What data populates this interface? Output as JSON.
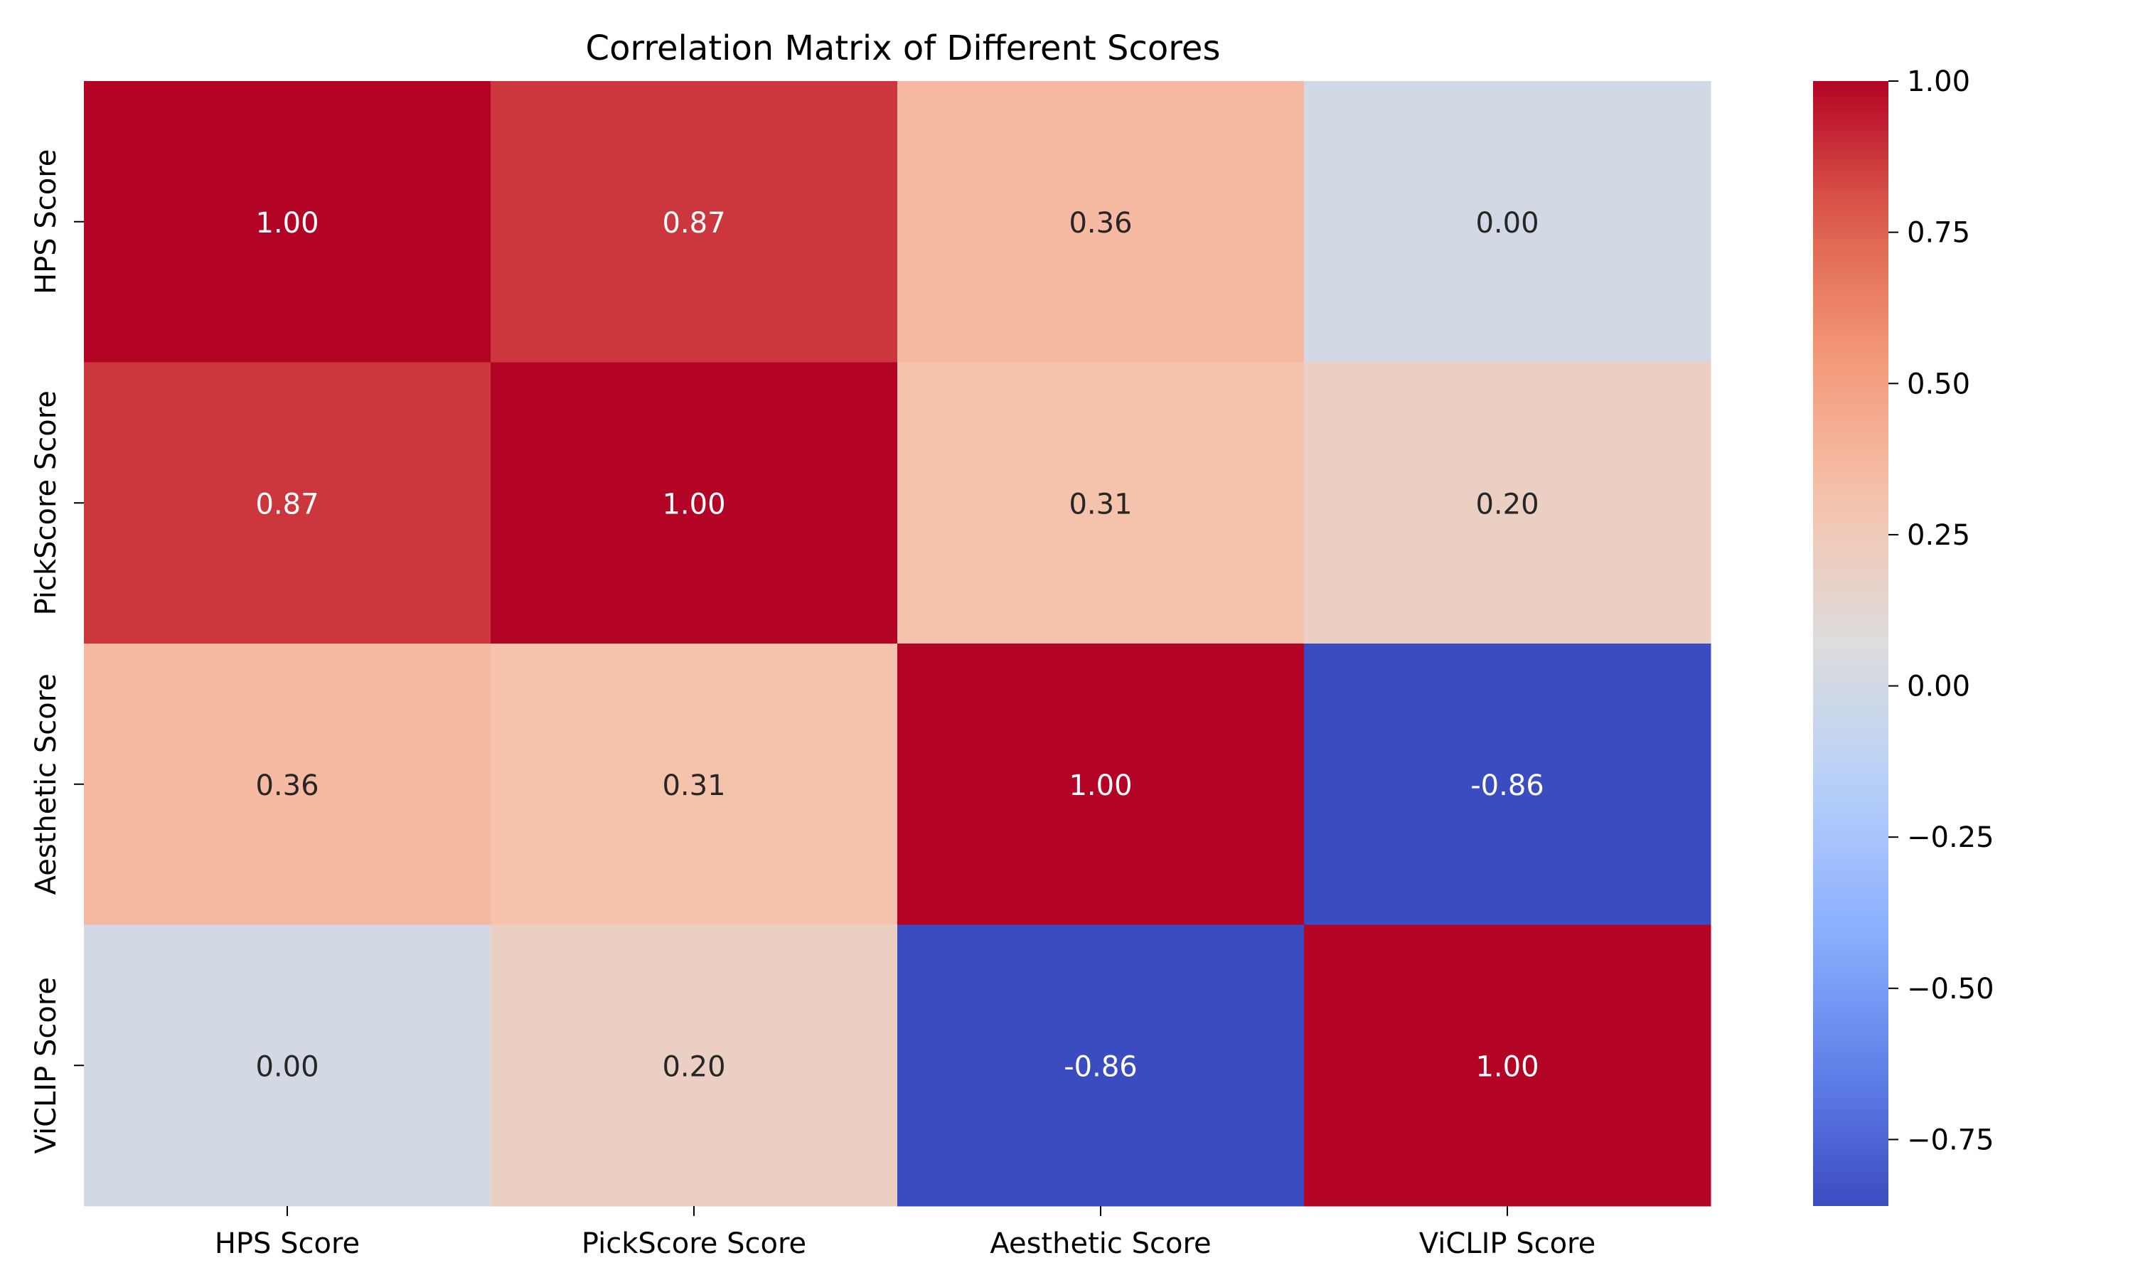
{
  "chart_data": {
    "type": "heatmap",
    "title": "Correlation Matrix of Different Scores",
    "x_labels": [
      "HPS Score",
      "PickScore Score",
      "Aesthetic Score",
      "ViCLIP Score"
    ],
    "y_labels": [
      "HPS Score",
      "PickScore Score",
      "Aesthetic Score",
      "ViCLIP Score"
    ],
    "values": [
      [
        1.0,
        0.87,
        0.36,
        0.0
      ],
      [
        0.87,
        1.0,
        0.31,
        0.2
      ],
      [
        0.36,
        0.31,
        1.0,
        -0.86
      ],
      [
        0.0,
        0.2,
        -0.86,
        1.0
      ]
    ],
    "annotations": [
      [
        "1.00",
        "0.87",
        "0.36",
        "0.00"
      ],
      [
        "0.87",
        "1.00",
        "0.31",
        "0.20"
      ],
      [
        "0.36",
        "0.31",
        "1.00",
        "-0.86"
      ],
      [
        "0.00",
        "0.20",
        "-0.86",
        "1.00"
      ]
    ],
    "colormap": "coolwarm",
    "vmin": -0.86,
    "vmax": 1.0,
    "colorbar": {
      "ticks": [
        1.0,
        0.75,
        0.5,
        0.25,
        0.0,
        -0.25,
        -0.5,
        -0.75
      ],
      "tick_labels": [
        "1.00",
        "0.75",
        "0.50",
        "0.25",
        "0.00",
        "−0.25",
        "−0.50",
        "−0.75"
      ]
    }
  }
}
